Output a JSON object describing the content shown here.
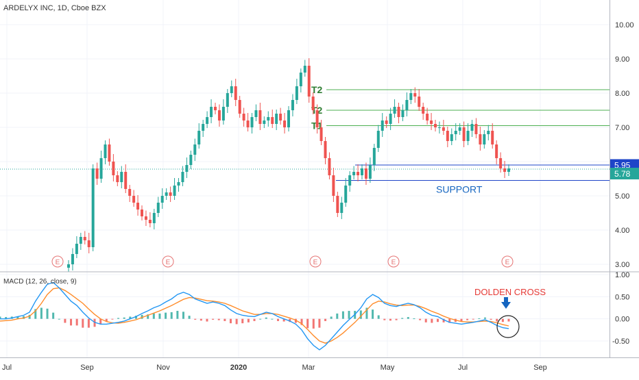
{
  "header": {
    "symbol": "ARDELYX INC, 1D, Cboe BZX",
    "macd_label": "MACD (12, 26, close, 9)"
  },
  "colors": {
    "up": "#26a69a",
    "down": "#ef5350",
    "target_line": "#4caf50",
    "target_text": "#2e7d32",
    "support_line": "#1e44c8",
    "support_text": "#1565c0",
    "macd_line": "#2196f3",
    "signal_line": "#ff8c2a",
    "annotation": "#e53935",
    "arrow": "#1565c0",
    "earnings": "#e57373",
    "grid": "#f0f3fa",
    "axis_text": "#333333"
  },
  "chart_data": [
    {
      "type": "candlestick",
      "y_ticks": [
        "10.00",
        "9.00",
        "8.00",
        "7.00",
        "6.00",
        "5.00",
        "4.00",
        "3.00"
      ],
      "ylim": [
        2.9,
        10.8
      ],
      "x_ticks": [
        "Jul",
        "Sep",
        "Nov",
        "2020",
        "Mar",
        "May",
        "Jul",
        "Sep"
      ],
      "price_labels": {
        "resistance": "5.95",
        "last": "5.78"
      },
      "levels": [
        {
          "label": "T2",
          "value": 8.1
        },
        {
          "label": "T2",
          "value": 7.5
        },
        {
          "label": "T1",
          "value": 7.05
        },
        {
          "label": "",
          "value": 5.9
        }
      ],
      "support": {
        "label": "SUPPORT",
        "value": 5.45
      },
      "earnings_marker": "E",
      "earnings_count": 5,
      "series": [
        {
          "name": "close",
          "values": [
            3.0,
            3.3,
            3.6,
            3.8,
            3.7,
            3.5,
            5.8,
            5.5,
            6.1,
            6.5,
            6.0,
            5.6,
            5.4,
            5.7,
            5.2,
            5.0,
            4.8,
            4.6,
            4.4,
            4.3,
            4.2,
            4.5,
            4.8,
            5.0,
            5.1,
            5.0,
            5.3,
            5.4,
            5.7,
            5.9,
            6.2,
            6.5,
            6.9,
            7.1,
            7.3,
            7.6,
            7.5,
            7.2,
            7.6,
            8.0,
            8.2,
            7.8,
            7.4,
            7.2,
            7.0,
            7.3,
            7.5,
            7.1,
            7.2,
            7.3,
            7.1,
            7.4,
            7.2,
            7.0,
            7.5,
            7.8,
            8.2,
            8.6,
            8.8,
            7.9,
            7.5,
            7.0,
            6.6,
            6.1,
            5.6,
            5.0,
            4.5,
            4.8,
            5.3,
            5.6,
            5.7,
            5.6,
            5.8,
            5.5,
            5.9,
            6.4,
            6.9,
            7.2,
            7.1,
            7.4,
            7.6,
            7.3,
            7.5,
            7.8,
            8.0,
            7.9,
            7.6,
            7.4,
            7.2,
            7.1,
            7.0,
            7.0,
            6.9,
            6.6,
            6.8,
            6.9,
            7.0,
            6.6,
            6.9,
            7.1,
            6.8,
            6.5,
            6.8,
            6.9,
            6.5,
            6.1,
            5.8,
            5.7,
            5.8
          ]
        }
      ]
    },
    {
      "type": "macd",
      "label": "MACD (12, 26, close, 9)",
      "y_ticks": [
        "1.00",
        "0.50",
        "0.00",
        "-0.50"
      ],
      "ylim": [
        -0.9,
        1.05
      ],
      "series": [
        {
          "name": "MACD",
          "values": [
            0.0,
            0.0,
            0.02,
            0.05,
            0.08,
            0.15,
            0.4,
            0.6,
            0.78,
            0.82,
            0.7,
            0.55,
            0.4,
            0.3,
            0.15,
            0.02,
            -0.08,
            -0.12,
            -0.12,
            -0.1,
            -0.08,
            -0.05,
            0.0,
            0.05,
            0.12,
            0.18,
            0.25,
            0.3,
            0.38,
            0.45,
            0.55,
            0.6,
            0.55,
            0.45,
            0.4,
            0.35,
            0.38,
            0.35,
            0.3,
            0.2,
            0.12,
            0.08,
            0.06,
            0.05,
            0.1,
            0.15,
            0.12,
            0.05,
            0.0,
            -0.05,
            -0.12,
            -0.25,
            -0.45,
            -0.6,
            -0.7,
            -0.6,
            -0.45,
            -0.3,
            -0.15,
            -0.02,
            0.1,
            0.25,
            0.45,
            0.55,
            0.48,
            0.35,
            0.3,
            0.28,
            0.32,
            0.35,
            0.32,
            0.25,
            0.15,
            0.08,
            0.05,
            -0.02,
            -0.08,
            -0.1,
            -0.12,
            -0.1,
            -0.08,
            -0.05,
            -0.02,
            -0.08,
            -0.15,
            -0.2,
            -0.22
          ]
        },
        {
          "name": "Signal",
          "values": [
            -0.05,
            -0.04,
            -0.03,
            0.0,
            0.02,
            0.06,
            0.18,
            0.35,
            0.55,
            0.68,
            0.7,
            0.64,
            0.55,
            0.45,
            0.35,
            0.22,
            0.1,
            0.0,
            -0.06,
            -0.09,
            -0.1,
            -0.08,
            -0.05,
            -0.02,
            0.03,
            0.08,
            0.13,
            0.18,
            0.24,
            0.3,
            0.37,
            0.44,
            0.48,
            0.47,
            0.44,
            0.41,
            0.4,
            0.38,
            0.35,
            0.3,
            0.24,
            0.18,
            0.14,
            0.1,
            0.1,
            0.12,
            0.12,
            0.1,
            0.06,
            0.02,
            -0.03,
            -0.11,
            -0.24,
            -0.38,
            -0.5,
            -0.55,
            -0.5,
            -0.42,
            -0.32,
            -0.2,
            -0.08,
            0.06,
            0.2,
            0.34,
            0.4,
            0.38,
            0.34,
            0.31,
            0.3,
            0.31,
            0.31,
            0.28,
            0.23,
            0.17,
            0.12,
            0.06,
            0.01,
            -0.03,
            -0.06,
            -0.07,
            -0.07,
            -0.06,
            -0.05,
            -0.06,
            -0.09,
            -0.13,
            -0.16
          ]
        }
      ]
    }
  ],
  "annotations": {
    "cross_label": "DOLDEN CROSS"
  }
}
